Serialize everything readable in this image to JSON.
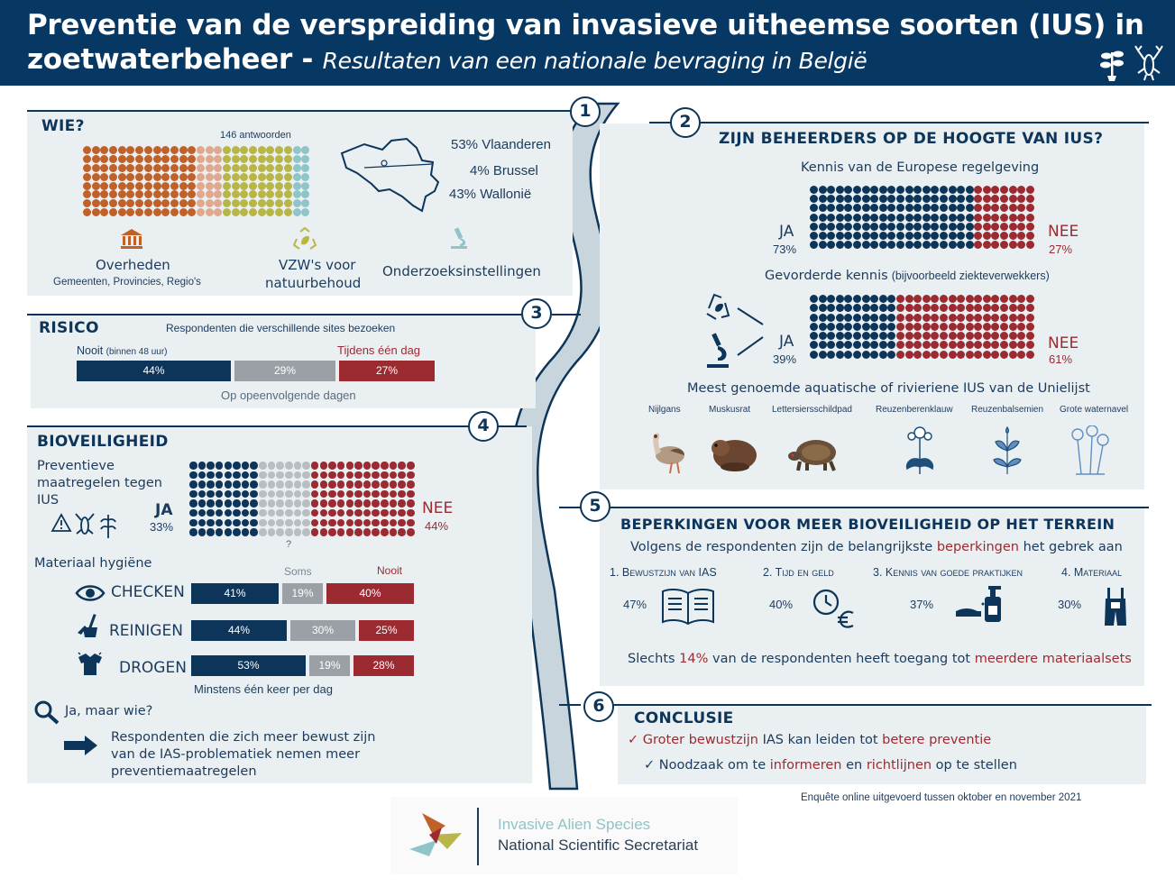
{
  "header": {
    "title_line1": "Preventie van de verspreiding van invasieve uitheemse soorten (IUS) in",
    "title_line2": "zoetwaterbeheer -",
    "subtitle": "Resultaten van een nationale bevraging in België"
  },
  "colors": {
    "navy": "#0d3559",
    "red": "#9b2a31",
    "grey": "#9aa0a6",
    "orange": "#c0612a",
    "salmon": "#e0a98f",
    "olive": "#b8b646",
    "teal": "#8fc4c8",
    "panel": "#eaf0f2"
  },
  "wie": {
    "number": "1",
    "title": "WIE?",
    "answers": "146 antwoorden",
    "regions": [
      "53% Vlaanderen",
      "4% Brussel",
      "43% Wallonië"
    ],
    "groups": [
      {
        "icon": "government-building-icon",
        "label": "Overheden",
        "sublabel": "Gemeenten,  Provincies,  Regio's"
      },
      {
        "icon": "recycle-leaf-icon",
        "label": "VZW's voor",
        "label2": "natuurbehoud"
      },
      {
        "icon": "microscope-icon",
        "label": "Onderzoeksinstellingen"
      }
    ]
  },
  "risico": {
    "number": "3",
    "title": "RISICO",
    "subtitle": "Respondenten  die verschillende  sites bezoeken",
    "nooit_label": "Nooit",
    "nooit_note": "(binnen 48 uur)",
    "dag_label": "Tijdens één dag",
    "opeen_label": "Op opeenvolgende dagen",
    "values": [
      "44%",
      "29%",
      "27%"
    ]
  },
  "bioveiligheid": {
    "number": "4",
    "title": "BIOVEILIGHEID",
    "preventive_label": [
      "Preventieve",
      "maatregelen tegen",
      "IUS"
    ],
    "ja": "JA",
    "ja_pct": "33%",
    "nee": "NEE",
    "nee_pct": "44%",
    "unknown": "?",
    "hygiene_title": "Materiaal hygiëne",
    "soms": "Soms",
    "nooit": "Nooit",
    "rows": [
      {
        "icon": "eye-icon",
        "label": "CHECKEN",
        "values": [
          "41%",
          "19%",
          "40%"
        ]
      },
      {
        "icon": "broom-bucket-icon",
        "label": "REINIGEN",
        "values": [
          "44%",
          "30%",
          "25%"
        ]
      },
      {
        "icon": "drying-shirt-icon",
        "label": "DROGEN",
        "values": [
          "53%",
          "19%",
          "28%"
        ]
      }
    ],
    "minstens": "Minstens één keer per dag",
    "ja_maar_wie": "Ja, maar wie?",
    "conclusion_lines": [
      "Respondenten die zich meer bewust zijn",
      "van de IAS-problematiek nemen meer",
      "preventiemaatregelen"
    ]
  },
  "beheerders": {
    "number": "2",
    "title": "ZIJN BEHEERDERS OP DE HOOGTE VAN IUS?",
    "kennis_title": "Kennis van de Europese regelgeving",
    "kennis_ja": "JA",
    "kennis_ja_pct": "73%",
    "kennis_nee": "NEE",
    "kennis_nee_pct": "27%",
    "gevorderde_title": "Gevorderde  kennis",
    "gevorderde_note": "(bijvoorbeeld ziekteverwekkers)",
    "gev_ja": "JA",
    "gev_ja_pct": "39%",
    "gev_nee": "NEE",
    "gev_nee_pct": "61%",
    "species_title": "Meest genoemde aquatische of rivieriene IUS van de Unielijst",
    "species": [
      "Nijlgans",
      "Muskusrat",
      "Lettersiersschildpad",
      "Reuzenberenklauw",
      "Reuzenbalsemien",
      "Grote waternavel"
    ]
  },
  "beperkingen": {
    "number": "5",
    "title": "BEPERKINGEN VOOR MEER BIOVEILIGHEID  OP HET TERREIN",
    "intro_a": "Volgens de respondenten zijn de belangrijkste",
    "intro_b": "beperkingen",
    "intro_c": "het gebrek aan",
    "items": [
      {
        "label": "1. Bewustzijn van IAS",
        "pct": "47%",
        "icon": "book-icon"
      },
      {
        "label": "2. Tijd en geld",
        "pct": "40%",
        "icon": "clock-euro-icon"
      },
      {
        "label": "3. Kennis van goede praktijken",
        "pct": "37%",
        "icon": "hand-sanitizer-icon"
      },
      {
        "label": "4. Materiaal",
        "pct": "30%",
        "icon": "overalls-icon"
      }
    ],
    "slechts_a": "Slechts",
    "slechts_pct": "14%",
    "slechts_b": "van de respondenten heeft toegang tot",
    "slechts_c": "meerdere materiaalsets"
  },
  "conclusie": {
    "number": "6",
    "title": "CONCLUSIE",
    "line1_a": "Groter bewustzijn",
    "line1_b": "IAS kan leiden tot",
    "line1_c": "betere preventie",
    "line2_a": "Noodzaak om te",
    "line2_b": "informeren",
    "line2_c": "en",
    "line2_d": "richtlijnen",
    "line2_e": "op te stellen"
  },
  "footer": {
    "survey": "Enquête online uitgevoerd tussen oktober en november 2021",
    "logo_line1": "Invasive Alien Species",
    "logo_line2": "National Scientific Secretariat"
  }
}
